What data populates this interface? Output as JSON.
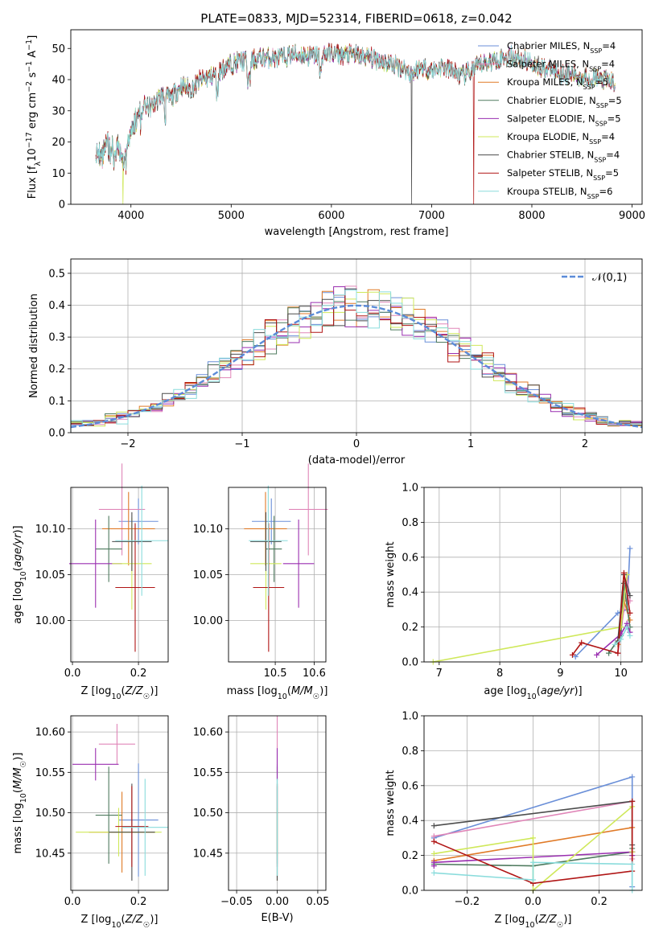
{
  "title": "PLATE=0833, MJD=52314, FIBERID=0618, z=0.042",
  "colors": [
    "#6a8fd8",
    "#e086b8",
    "#e07a27",
    "#4e7a5e",
    "#9a2fb0",
    "#cfe85a",
    "#4c4c4c",
    "#b01515",
    "#8adcdc"
  ],
  "chart_data": [
    {
      "id": "spectrum",
      "type": "line",
      "xlabel": "wavelength [Angstrom, rest frame]",
      "ylabel": "Flux [f_λ 10^-17 erg cm^-2 s^-1 A^-1]",
      "xlim": [
        3400,
        9100
      ],
      "ylim": [
        0,
        56
      ],
      "xticks": [
        4000,
        5000,
        6000,
        7000,
        8000,
        9000
      ],
      "yticks": [
        0,
        10,
        20,
        30,
        40,
        50
      ],
      "grid": false,
      "legend_position": "top-right",
      "continuum_x": [
        3650,
        3700,
        3760,
        3800,
        3860,
        3930,
        4000,
        4060,
        4100,
        4200,
        4300,
        4400,
        4500,
        4600,
        4700,
        4800,
        4900,
        5000,
        5100,
        5200,
        5300,
        5400,
        5500,
        5600,
        5700,
        5800,
        5900,
        6000,
        6100,
        6200,
        6300,
        6400,
        6500,
        6600,
        6700,
        6800,
        6900,
        7000,
        7100,
        7200,
        7300,
        7400,
        7500,
        7600,
        7700,
        7800,
        7900,
        8000,
        8100,
        8200,
        8300,
        8400,
        8500,
        8600,
        8700,
        8830
      ],
      "continuum_y": [
        18,
        16,
        19,
        15,
        18,
        13,
        24,
        27,
        32,
        31,
        35,
        34,
        38,
        37,
        40,
        41,
        43,
        45,
        46,
        46,
        47,
        47,
        47,
        48,
        48,
        47.5,
        48,
        48.5,
        48,
        48,
        47.5,
        47,
        46,
        45,
        44,
        42,
        44,
        43,
        44,
        43,
        41,
        43,
        45,
        46,
        47,
        47.5,
        46.5,
        45.5,
        44,
        43,
        42,
        41.5,
        41,
        40.5,
        40,
        39
      ],
      "dropout_series": [
        5,
        6,
        7
      ],
      "dropout_x": [
        3920,
        6800,
        7420
      ],
      "series": [
        {
          "name": "Chabrier MILES, N_SSP=4"
        },
        {
          "name": "Salpeter MILES, N_SSP=4"
        },
        {
          "name": "Kroupa MILES, N_SSP=5"
        },
        {
          "name": "Chabrier ELODIE, N_SSP=5"
        },
        {
          "name": "Salpeter ELODIE, N_SSP=5"
        },
        {
          "name": "Kroupa ELODIE, N_SSP=4"
        },
        {
          "name": "Chabrier STELIB, N_SSP=4"
        },
        {
          "name": "Salpeter STELIB, N_SSP=5"
        },
        {
          "name": "Kroupa STELIB, N_SSP=6"
        }
      ]
    },
    {
      "id": "residuals",
      "type": "histogram",
      "xlabel": "(data-model)/error",
      "ylabel": "Normed distribution",
      "xlim": [
        -2.5,
        2.5
      ],
      "ylim": [
        0,
        0.545
      ],
      "xticks": [
        -2,
        -1,
        0,
        1,
        2
      ],
      "yticks": [
        0.0,
        0.1,
        0.2,
        0.3,
        0.4,
        0.5
      ],
      "grid": true,
      "legend_position": "top-right",
      "reference": {
        "name": "𝒩(0,1)",
        "mean": 0,
        "sigma": 1
      },
      "bin_width": 0.1
    },
    {
      "id": "age_vs_Z",
      "type": "errorbar",
      "xlabel": "Z [log10(Z/Z☉)]",
      "ylabel": "age  [log10(age/yr)]",
      "xlim": [
        -0.005,
        0.29
      ],
      "ylim": [
        9.955,
        10.145
      ],
      "xticks": [
        0.0,
        0.2
      ],
      "yticks": [
        10.0,
        10.05,
        10.1
      ],
      "grid": true,
      "points": [
        {
          "x": 0.2,
          "xerr": 0.06,
          "y": 10.108,
          "yerr": 0.025
        },
        {
          "x": 0.15,
          "xerr": 0.07,
          "y": 10.121,
          "yerr": 0.05
        },
        {
          "x": 0.17,
          "xerr": 0.08,
          "y": 10.1,
          "yerr": 0.04
        },
        {
          "x": 0.11,
          "xerr": 0.04,
          "y": 10.078,
          "yerr": 0.036
        },
        {
          "x": 0.07,
          "xerr": 0.08,
          "y": 10.062,
          "yerr": 0.048
        },
        {
          "x": 0.18,
          "xerr": 0.06,
          "y": 10.062,
          "yerr": 0.05
        },
        {
          "x": 0.18,
          "xerr": 0.06,
          "y": 10.086,
          "yerr": 0.032
        },
        {
          "x": 0.19,
          "xerr": 0.06,
          "y": 10.036,
          "yerr": 0.07
        },
        {
          "x": 0.21,
          "xerr": 0.08,
          "y": 10.087,
          "yerr": 0.06
        }
      ]
    },
    {
      "id": "age_vs_mass",
      "type": "errorbar",
      "xlabel": "mass [log10(M/M☉)]",
      "ylabel": "",
      "xlim": [
        10.38,
        10.63
      ],
      "ylim": [
        9.955,
        10.145
      ],
      "xticks": [
        10.5,
        10.6
      ],
      "yticks": [
        10.0,
        10.05,
        10.1
      ],
      "grid": true,
      "points": [
        {
          "x": 10.49,
          "xerr": 0.05,
          "y": 10.108,
          "yerr": 0.025
        },
        {
          "x": 10.585,
          "xerr": 0.05,
          "y": 10.121,
          "yerr": 0.05
        },
        {
          "x": 10.475,
          "xerr": 0.055,
          "y": 10.1,
          "yerr": 0.04
        },
        {
          "x": 10.497,
          "xerr": 0.02,
          "y": 10.078,
          "yerr": 0.036
        },
        {
          "x": 10.56,
          "xerr": 0.04,
          "y": 10.062,
          "yerr": 0.048
        },
        {
          "x": 10.476,
          "xerr": 0.04,
          "y": 10.062,
          "yerr": 0.05
        },
        {
          "x": 10.476,
          "xerr": 0.04,
          "y": 10.086,
          "yerr": 0.032
        },
        {
          "x": 10.483,
          "xerr": 0.04,
          "y": 10.036,
          "yerr": 0.07
        },
        {
          "x": 10.482,
          "xerr": 0.05,
          "y": 10.087,
          "yerr": 0.06
        }
      ]
    },
    {
      "id": "weight_vs_age",
      "type": "line",
      "xlabel": "age  [log10(age/yr)]",
      "ylabel": "mass weight",
      "xlim": [
        6.75,
        10.35
      ],
      "ylim": [
        0,
        1.0
      ],
      "xticks": [
        7,
        8,
        9,
        10
      ],
      "yticks": [
        0.0,
        0.2,
        0.4,
        0.6,
        0.8,
        1.0
      ],
      "grid": true,
      "series": [
        {
          "x": [
            9.25,
            9.95,
            10.1,
            10.15
          ],
          "y": [
            0.03,
            0.28,
            0.3,
            0.65
          ]
        },
        {
          "x": [
            9.95,
            10.05,
            10.1,
            10.15
          ],
          "y": [
            0.05,
            0.3,
            0.5,
            0.35
          ]
        },
        {
          "x": [
            9.95,
            10.0,
            10.05,
            10.15
          ],
          "y": [
            0.1,
            0.2,
            0.35,
            0.24
          ]
        },
        {
          "x": [
            9.8,
            10.0,
            10.05,
            10.15
          ],
          "y": [
            0.05,
            0.15,
            0.45,
            0.2
          ]
        },
        {
          "x": [
            9.6,
            10.0,
            10.1,
            10.15
          ],
          "y": [
            0.04,
            0.16,
            0.22,
            0.17
          ]
        },
        {
          "x": [
            6.9,
            10.0,
            10.1
          ],
          "y": [
            0.0,
            0.2,
            0.5
          ]
        },
        {
          "x": [
            9.95,
            10.05,
            10.15
          ],
          "y": [
            0.12,
            0.5,
            0.38
          ]
        },
        {
          "x": [
            9.2,
            9.35,
            9.95,
            10.05,
            10.15
          ],
          "y": [
            0.04,
            0.11,
            0.05,
            0.51,
            0.28
          ]
        },
        {
          "x": [
            9.9,
            10.0,
            10.1,
            10.15
          ],
          "y": [
            0.1,
            0.13,
            0.2,
            0.15
          ]
        }
      ]
    },
    {
      "id": "mass_vs_Z",
      "type": "errorbar",
      "xlabel": "Z [log10(Z/Z☉)]",
      "ylabel": "mass [log10(M/M☉)]",
      "xlim": [
        -0.005,
        0.29
      ],
      "ylim": [
        10.404,
        10.62
      ],
      "xticks": [
        0.0,
        0.2
      ],
      "yticks": [
        10.45,
        10.5,
        10.55,
        10.6
      ],
      "grid": true,
      "points": [
        {
          "x": 0.2,
          "xerr": 0.06,
          "y": 10.491,
          "yerr": 0.07
        },
        {
          "x": 0.135,
          "xerr": 0.055,
          "y": 10.585,
          "yerr": 0.025
        },
        {
          "x": 0.15,
          "xerr": 0.1,
          "y": 10.476,
          "yerr": 0.05
        },
        {
          "x": 0.11,
          "xerr": 0.04,
          "y": 10.497,
          "yerr": 0.06
        },
        {
          "x": 0.07,
          "xerr": 0.07,
          "y": 10.56,
          "yerr": 0.02
        },
        {
          "x": 0.14,
          "xerr": 0.13,
          "y": 10.476,
          "yerr": 0.03
        },
        {
          "x": 0.18,
          "xerr": 0.07,
          "y": 10.476,
          "yerr": 0.06
        },
        {
          "x": 0.18,
          "xerr": 0.05,
          "y": 10.483,
          "yerr": 0.05
        },
        {
          "x": 0.22,
          "xerr": 0.07,
          "y": 10.482,
          "yerr": 0.06
        }
      ]
    },
    {
      "id": "mass_vs_EBV",
      "type": "errorbar",
      "xlabel": "E(B-V)",
      "ylabel": "",
      "xlim": [
        -0.06,
        0.06
      ],
      "ylim": [
        10.404,
        10.62
      ],
      "xticks": [
        -0.05,
        0.0,
        0.05
      ],
      "yticks": [
        10.45,
        10.5,
        10.55,
        10.6
      ],
      "grid": true,
      "points": [
        {
          "x": 0.0,
          "xerr": 0.0,
          "y": 10.49,
          "yerr": 0.07
        },
        {
          "x": 0.0,
          "xerr": 0.0,
          "y": 10.585,
          "yerr": 0.035
        },
        {
          "x": 0.0,
          "xerr": 0.0,
          "y": 10.476,
          "yerr": 0.06
        },
        {
          "x": 0.0,
          "xerr": 0.0,
          "y": 10.497,
          "yerr": 0.06
        },
        {
          "x": 0.0,
          "xerr": 0.0,
          "y": 10.56,
          "yerr": 0.02
        },
        {
          "x": 0.0,
          "xerr": 0.0,
          "y": 10.476,
          "yerr": 0.03
        },
        {
          "x": 0.0,
          "xerr": 0.0,
          "y": 10.476,
          "yerr": 0.06
        },
        {
          "x": 0.0,
          "xerr": 0.0,
          "y": 10.483,
          "yerr": 0.05
        },
        {
          "x": 0.0,
          "xerr": 0.0,
          "y": 10.482,
          "yerr": 0.06
        }
      ]
    },
    {
      "id": "weight_vs_Z",
      "type": "line",
      "xlabel": "Z [log10(Z/Z☉)]",
      "ylabel": "mass weight",
      "xlim": [
        -0.33,
        0.33
      ],
      "ylim": [
        0,
        1.0
      ],
      "xticks": [
        -0.2,
        0.0,
        0.2
      ],
      "yticks": [
        0.0,
        0.2,
        0.4,
        0.6,
        0.8,
        1.0
      ],
      "grid": true,
      "series": [
        {
          "x": [
            -0.3,
            0.3,
            0.3
          ],
          "y": [
            0.3,
            0.65,
            0.02
          ]
        },
        {
          "x": [
            -0.3,
            0.3,
            0.3
          ],
          "y": [
            0.31,
            0.51,
            0.18
          ]
        },
        {
          "x": [
            -0.3,
            0.3,
            0.3
          ],
          "y": [
            0.17,
            0.36,
            0.22
          ]
        },
        {
          "x": [
            -0.3,
            0.0,
            0.3,
            0.3
          ],
          "y": [
            0.15,
            0.14,
            0.22,
            0.24
          ]
        },
        {
          "x": [
            -0.3,
            -0.3,
            0.3,
            0.3
          ],
          "y": [
            0.14,
            0.16,
            0.22,
            0.2
          ]
        },
        {
          "x": [
            -0.3,
            0.0,
            0.0,
            0.3,
            0.3
          ],
          "y": [
            0.21,
            0.3,
            0.0,
            0.48,
            0.22
          ]
        },
        {
          "x": [
            -0.3,
            0.3,
            0.3
          ],
          "y": [
            0.37,
            0.51,
            0.26
          ]
        },
        {
          "x": [
            -0.3,
            0.0,
            0.3,
            0.3
          ],
          "y": [
            0.28,
            0.04,
            0.11,
            0.51
          ]
        },
        {
          "x": [
            -0.3,
            0.0,
            0.0,
            0.3,
            0.3
          ],
          "y": [
            0.1,
            0.06,
            0.16,
            0.15,
            0.0
          ]
        }
      ]
    }
  ]
}
